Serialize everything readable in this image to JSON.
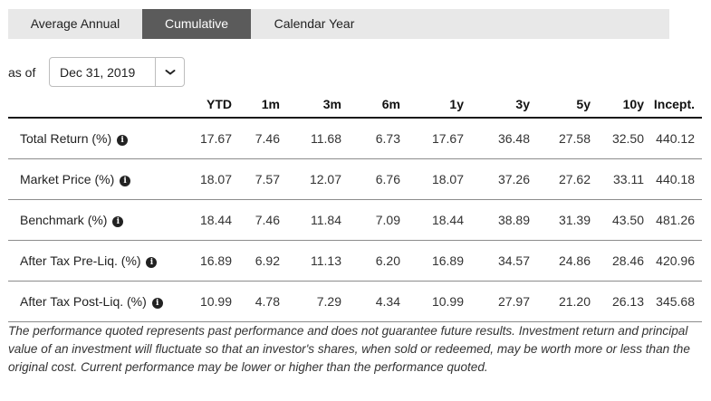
{
  "tabs": [
    "Average Annual",
    "Cumulative",
    "Calendar Year"
  ],
  "active_tab": "Cumulative",
  "as_of": {
    "label": "as of",
    "value": "Dec 31, 2019"
  },
  "table": {
    "columns": [
      "YTD",
      "1m",
      "3m",
      "6m",
      "1y",
      "3y",
      "5y",
      "10y",
      "Incept."
    ],
    "rows": [
      {
        "label": "Total Return (%)",
        "values": [
          "17.67",
          "7.46",
          "11.68",
          "6.73",
          "17.67",
          "36.48",
          "27.58",
          "32.50",
          "440.12"
        ]
      },
      {
        "label": "Market Price (%)",
        "values": [
          "18.07",
          "7.57",
          "12.07",
          "6.76",
          "18.07",
          "37.26",
          "27.62",
          "33.11",
          "440.18"
        ]
      },
      {
        "label": "Benchmark (%)",
        "values": [
          "18.44",
          "7.46",
          "11.84",
          "7.09",
          "18.44",
          "38.89",
          "31.39",
          "43.50",
          "481.26"
        ]
      },
      {
        "label": "After Tax Pre-Liq. (%)",
        "values": [
          "16.89",
          "6.92",
          "11.13",
          "6.20",
          "16.89",
          "34.57",
          "24.86",
          "28.46",
          "420.96"
        ]
      },
      {
        "label": "After Tax Post-Liq. (%)",
        "values": [
          "10.99",
          "4.78",
          "7.29",
          "4.34",
          "10.99",
          "27.97",
          "21.20",
          "26.13",
          "345.68"
        ]
      }
    ]
  },
  "disclaimer": "The performance quoted represents past performance and does not guarantee future results. Investment return and principal value of an investment will fluctuate so that an investor's shares, when sold or redeemed, may be worth more or less than the original cost. Current performance may be lower or higher than the performance quoted.",
  "icons": {
    "info": "info-icon",
    "caret": "chevron-down-icon"
  },
  "colors": {
    "active_tab_bg": "#5b5b5b",
    "tab_bar_bg": "#e8e8e8"
  }
}
